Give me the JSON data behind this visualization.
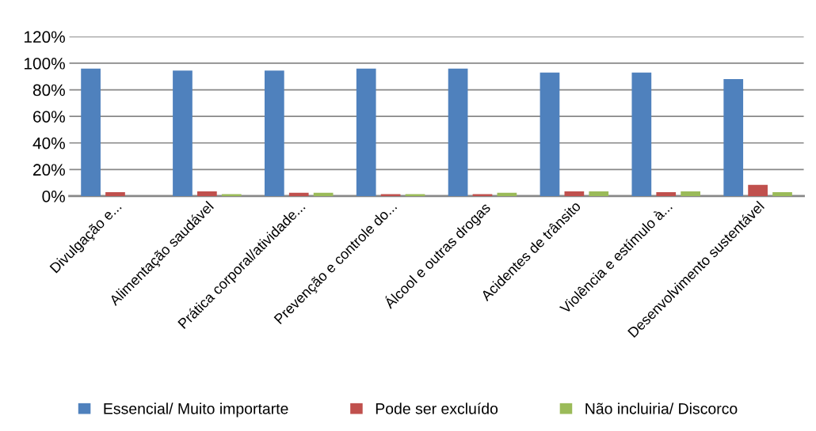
{
  "chart_data": {
    "type": "bar",
    "categories": [
      "Divulgação e...",
      "Alimentação saudável",
      "Prática corporal/atividade...",
      "Prevenção e controle do...",
      "Álcool e outras drogas",
      "Acidentes de trânsito",
      "Violência e estímulo à...",
      "Desenvolvimento sustentável"
    ],
    "series": [
      {
        "name": "Essencial/ Muito importarte",
        "color": "#4f81bd",
        "values": [
          96,
          94.5,
          94.5,
          96,
          96,
          93,
          93,
          88
        ]
      },
      {
        "name": "Pode ser excluído",
        "color": "#c0504d",
        "values": [
          3,
          3.6,
          2.5,
          1.4,
          1.4,
          3.6,
          3,
          8.4
        ]
      },
      {
        "name": "Não incluiria/ Discorco",
        "color": "#9bbb59",
        "values": [
          0,
          1.4,
          2.5,
          1.4,
          2.5,
          3.6,
          3.6,
          3
        ]
      }
    ],
    "ylim": [
      0,
      120
    ],
    "yticks": [
      {
        "value": 0,
        "label": "0%"
      },
      {
        "value": 20,
        "label": "20%"
      },
      {
        "value": 40,
        "label": "40%"
      },
      {
        "value": 60,
        "label": "60%"
      },
      {
        "value": 80,
        "label": "80%"
      },
      {
        "value": 100,
        "label": "100%"
      },
      {
        "value": 120,
        "label": "120%"
      }
    ],
    "grid": "y",
    "legend": "bottom"
  }
}
